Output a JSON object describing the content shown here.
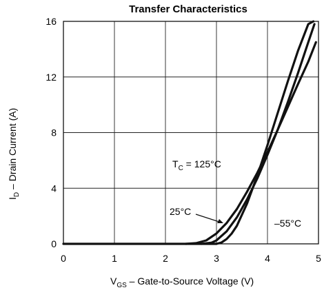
{
  "chart_data": {
    "type": "line",
    "title": "Transfer Characteristics",
    "xlabel_main": "V",
    "xlabel_sub": "GS",
    "xlabel_rest": "  –  Gate-to-Source Voltage (V)",
    "ylabel_main": "I",
    "ylabel_sub": "D",
    "ylabel_rest": "  –  Drain Current (A)",
    "xlim": [
      0,
      5
    ],
    "ylim": [
      0,
      16
    ],
    "xticks": [
      "0",
      "1",
      "2",
      "3",
      "4",
      "5"
    ],
    "yticks": [
      "0",
      "4",
      "8",
      "12",
      "16"
    ],
    "grid": true,
    "series": [
      {
        "name": "125°C",
        "label_main": "T",
        "label_sub": "C",
        "label_rest": " = 125°C",
        "x": [
          2.4,
          2.6,
          2.8,
          3.0,
          3.2,
          3.4,
          3.6,
          3.8,
          4.0,
          4.2,
          4.4,
          4.6,
          4.8,
          4.95
        ],
        "y": [
          0.0,
          0.05,
          0.25,
          0.75,
          1.5,
          2.5,
          3.75,
          5.1,
          6.6,
          8.2,
          9.85,
          11.5,
          13.1,
          14.5
        ]
      },
      {
        "name": "25°C",
        "label": "25°C",
        "x": [
          2.7,
          2.9,
          3.0,
          3.2,
          3.4,
          3.6,
          3.8,
          4.0,
          4.2,
          4.4,
          4.6,
          4.8,
          4.92
        ],
        "y": [
          0.0,
          0.08,
          0.25,
          0.9,
          1.9,
          3.2,
          4.7,
          6.4,
          8.2,
          10.2,
          12.3,
          14.5,
          15.8
        ]
      },
      {
        "name": "-55°C",
        "label": "–55°C",
        "x": [
          3.0,
          3.1,
          3.2,
          3.3,
          3.4,
          3.6,
          3.8,
          4.0,
          4.2,
          4.4,
          4.6,
          4.8,
          4.9
        ],
        "y": [
          0.0,
          0.1,
          0.35,
          0.75,
          1.3,
          2.9,
          4.9,
          7.1,
          9.4,
          11.7,
          13.9,
          15.8,
          16.0
        ]
      }
    ]
  }
}
